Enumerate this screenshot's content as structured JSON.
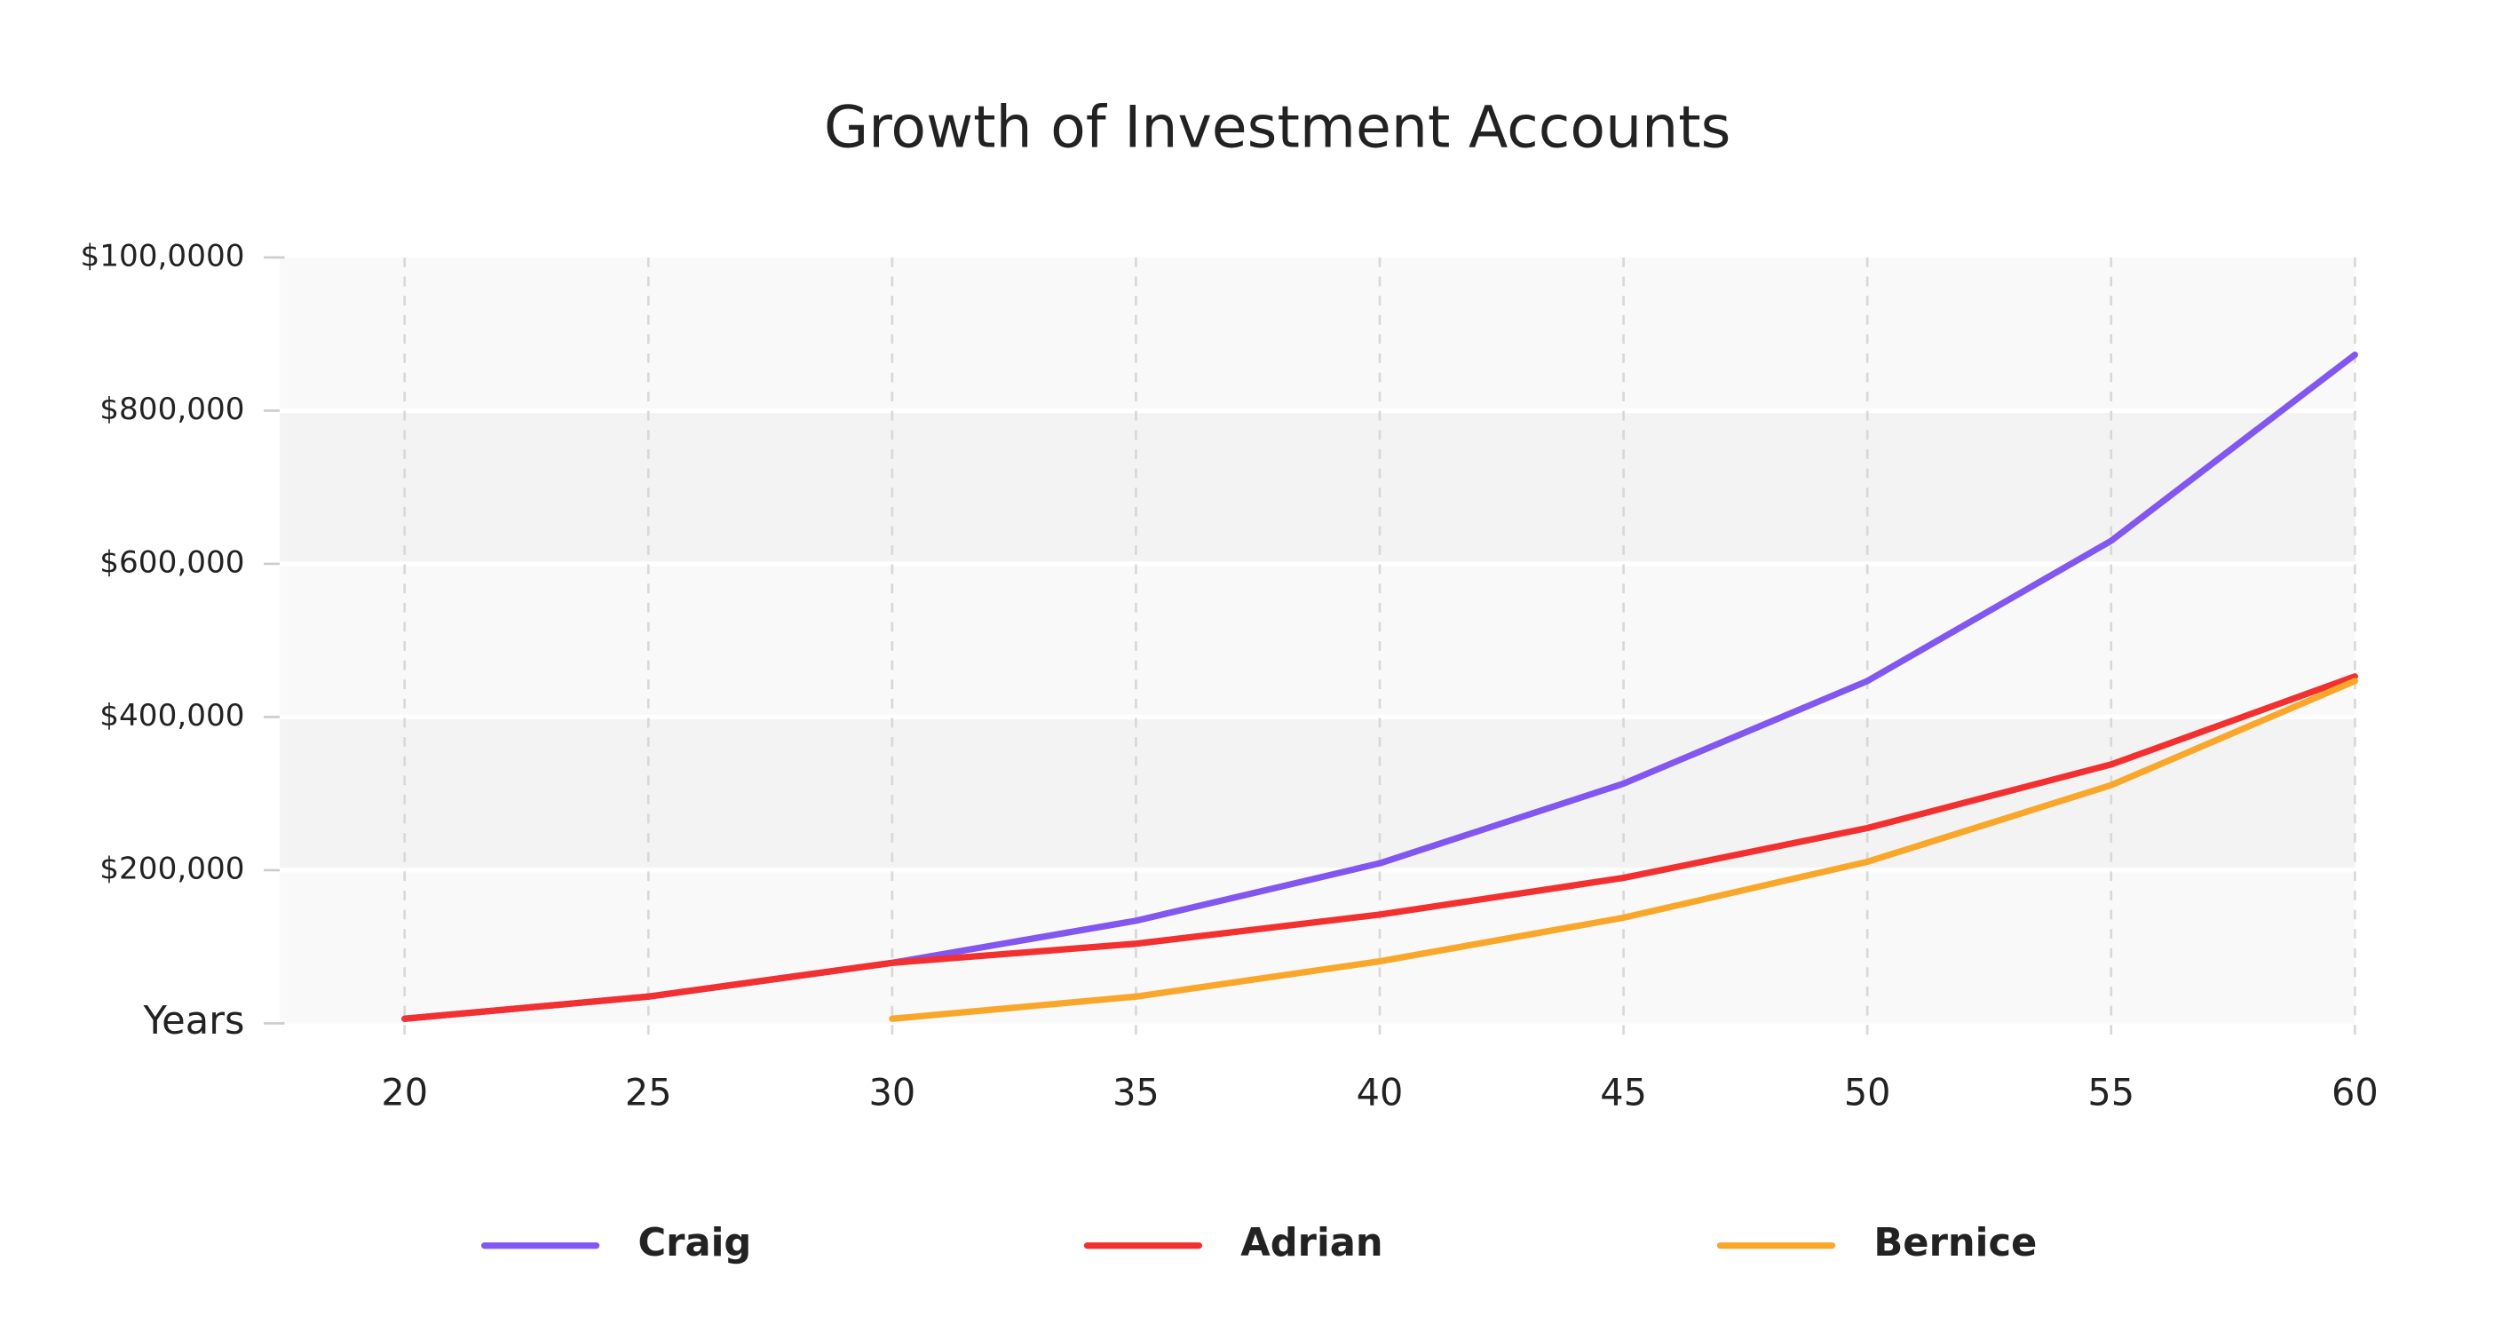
{
  "chart_data": {
    "type": "line",
    "title": "Growth of Investment Accounts",
    "x": [
      20,
      25,
      30,
      35,
      40,
      45,
      50,
      55,
      60
    ],
    "series": [
      {
        "name": "Craig",
        "color": "#8257f0",
        "values": [
          6000,
          35000,
          79000,
          134000,
          209000,
          313000,
          447000,
          630000,
          873000
        ]
      },
      {
        "name": "Adrian",
        "color": "#f2302f",
        "values": [
          6000,
          35000,
          79000,
          104000,
          142000,
          190000,
          255000,
          338000,
          453000
        ]
      },
      {
        "name": "Bernice",
        "color": "#f9a72a",
        "values": [
          null,
          null,
          6000,
          35000,
          81000,
          138000,
          211000,
          311000,
          447000
        ]
      }
    ],
    "xlim": [
      17.44,
      60
    ],
    "xticks": [
      20,
      25,
      30,
      35,
      40,
      45,
      50,
      55,
      60
    ],
    "ylim": [
      0,
      1000000
    ],
    "yticks": [
      {
        "value": 0,
        "label": "Years"
      },
      {
        "value": 200000,
        "label": "$200,000"
      },
      {
        "value": 400000,
        "label": "$400,000"
      },
      {
        "value": 600000,
        "label": "$600,000"
      },
      {
        "value": 800000,
        "label": "$800,000"
      },
      {
        "value": 1000000,
        "label": "$100,0000"
      }
    ],
    "grid": true,
    "legend": "bottom"
  }
}
